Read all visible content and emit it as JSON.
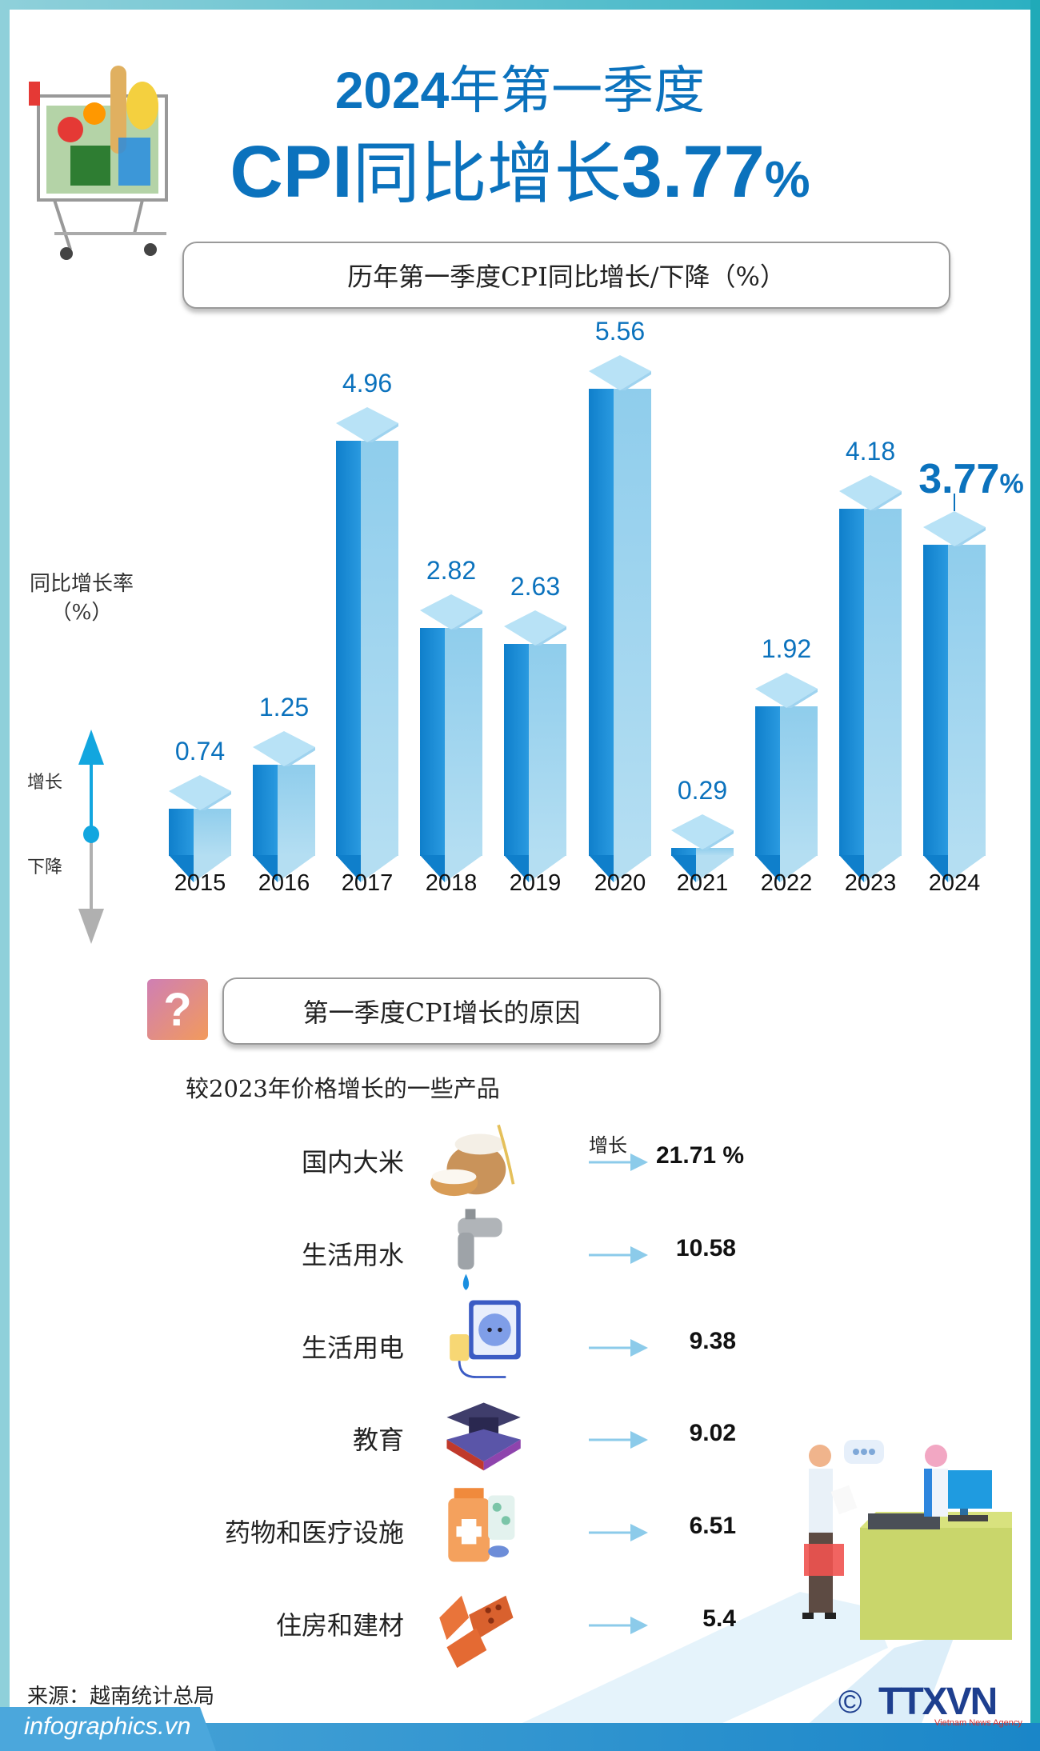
{
  "header": {
    "title_line1_num": "2024",
    "title_line1_text": "年第一季度",
    "title_line2_cpi": "CPI",
    "title_line2_text": "同比增长",
    "title_line2_value": "3.77",
    "title_line2_pct": "%"
  },
  "chart_section": {
    "subtitle": "历年第一季度CPI同比增长/下降（%）",
    "y_label_line1": "同比增长率",
    "y_label_line2": "（%）",
    "legend_up": "增长",
    "legend_down": "下降"
  },
  "chart_data": {
    "type": "bar",
    "title": "历年第一季度CPI同比增长/下降（%）",
    "xlabel": "",
    "ylabel": "同比增长率（%）",
    "categories": [
      "2015",
      "2016",
      "2017",
      "2018",
      "2019",
      "2020",
      "2021",
      "2022",
      "2023",
      "2024"
    ],
    "values": [
      0.74,
      1.25,
      4.96,
      2.82,
      2.63,
      5.56,
      0.29,
      1.92,
      4.18,
      3.77
    ],
    "labels": [
      "0.74",
      "1.25",
      "4.96",
      "2.82",
      "2.63",
      "5.56",
      "0.29",
      "1.92",
      "4.18",
      "3.77%"
    ],
    "highlight": "2024",
    "ylim": [
      0,
      6
    ],
    "grid": false,
    "legend": "none"
  },
  "reasons": {
    "title": "第一季度CPI增长的原因",
    "compare_label": "较2023年价格增长的一些产品",
    "increase_label": "增长",
    "items": [
      {
        "name": "国内大米",
        "value": "21.71 %",
        "icon": "rice-icon"
      },
      {
        "name": "生活用水",
        "value": "10.58",
        "icon": "water-tap-icon"
      },
      {
        "name": "生活用电",
        "value": "9.38",
        "icon": "power-socket-icon"
      },
      {
        "name": "教育",
        "value": "9.02",
        "icon": "graduation-cap-icon"
      },
      {
        "name": "药物和医疗设施",
        "value": "6.51",
        "icon": "medicine-icon"
      },
      {
        "name": "住房和建材",
        "value": "5.4",
        "icon": "bricks-icon"
      }
    ]
  },
  "footer": {
    "source": "来源：越南统计总局",
    "brand": "infographics.vn",
    "copyright": "©",
    "agency_logo": "TTXVN",
    "agency_sub": "Vietnam News Agency"
  },
  "colors": {
    "primary_blue": "#0b72bd",
    "bar_dark": "#0f7fcb",
    "bar_light": "#8fcdec",
    "frame": "#8fd0da",
    "arrow": "#8ccbea"
  }
}
